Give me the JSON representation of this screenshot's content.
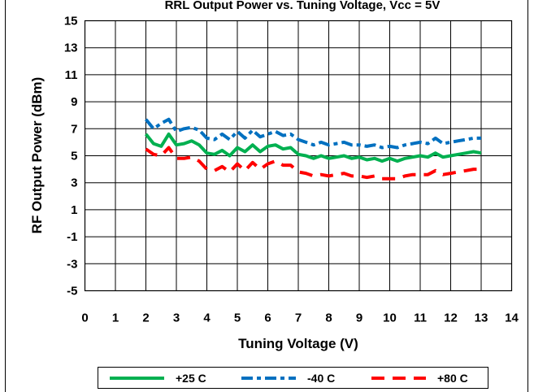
{
  "chart_data": {
    "type": "line",
    "title": "RRL Output Power vs. Tuning Voltage, Vcc = 5V",
    "xlabel": "Tuning Voltage (V)",
    "ylabel": "RF Output Power (dBm)",
    "xlim": [
      0,
      14
    ],
    "ylim": [
      -5,
      15
    ],
    "xticks": [
      "0",
      "1",
      "2",
      "3",
      "4",
      "5",
      "6",
      "7",
      "8",
      "9",
      "10",
      "11",
      "12",
      "13",
      "14"
    ],
    "yticks": [
      "-5",
      "-3",
      "-1",
      "1",
      "3",
      "5",
      "7",
      "9",
      "11",
      "13",
      "15"
    ],
    "grid": true,
    "legend_position": "bottom",
    "series": [
      {
        "name": "+25 C",
        "color": "#00b050",
        "dash": "solid",
        "x": [
          2.0,
          2.25,
          2.5,
          2.75,
          3.0,
          3.25,
          3.5,
          3.75,
          4.0,
          4.25,
          4.5,
          4.75,
          5.0,
          5.25,
          5.5,
          5.75,
          6.0,
          6.25,
          6.5,
          6.75,
          7.0,
          7.25,
          7.5,
          7.75,
          8.0,
          8.25,
          8.5,
          8.75,
          9.0,
          9.25,
          9.5,
          9.75,
          10.0,
          10.25,
          10.5,
          10.75,
          11.0,
          11.25,
          11.5,
          11.75,
          12.0,
          12.25,
          12.5,
          12.75,
          13.0
        ],
        "y": [
          6.6,
          5.9,
          5.7,
          6.6,
          5.8,
          5.9,
          6.1,
          5.8,
          5.2,
          5.1,
          5.4,
          5.0,
          5.6,
          5.3,
          5.8,
          5.3,
          5.7,
          5.8,
          5.5,
          5.6,
          5.1,
          5.0,
          4.8,
          5.0,
          4.8,
          4.9,
          5.0,
          4.8,
          4.9,
          4.7,
          4.8,
          4.6,
          4.8,
          4.6,
          4.8,
          4.9,
          5.0,
          4.9,
          5.2,
          4.9,
          5.0,
          5.1,
          5.2,
          5.3,
          5.2
        ]
      },
      {
        "name": "-40 C",
        "color": "#0070c0",
        "dash": "dash-dot",
        "x": [
          2.0,
          2.25,
          2.5,
          2.75,
          3.0,
          3.25,
          3.5,
          3.75,
          4.0,
          4.25,
          4.5,
          4.75,
          5.0,
          5.25,
          5.5,
          5.75,
          6.0,
          6.25,
          6.5,
          6.75,
          7.0,
          7.25,
          7.5,
          7.75,
          8.0,
          8.25,
          8.5,
          8.75,
          9.0,
          9.25,
          9.5,
          9.75,
          10.0,
          10.25,
          10.5,
          10.75,
          11.0,
          11.25,
          11.5,
          11.75,
          12.0,
          12.25,
          12.5,
          12.75,
          13.0
        ],
        "y": [
          7.7,
          7.0,
          7.4,
          7.7,
          6.8,
          7.0,
          7.1,
          6.9,
          6.3,
          6.2,
          6.6,
          6.2,
          6.8,
          6.3,
          6.9,
          6.4,
          6.6,
          6.8,
          6.5,
          6.6,
          6.2,
          6.0,
          5.8,
          6.0,
          5.8,
          5.9,
          6.0,
          5.8,
          5.8,
          5.7,
          5.8,
          5.6,
          5.7,
          5.6,
          5.8,
          5.9,
          6.0,
          5.9,
          6.3,
          5.9,
          6.0,
          6.1,
          6.2,
          6.3,
          6.3
        ]
      },
      {
        "name": "+80 C",
        "color": "#ff0000",
        "dash": "dash",
        "x": [
          2.0,
          2.25,
          2.5,
          2.75,
          3.0,
          3.25,
          3.5,
          3.75,
          4.0,
          4.25,
          4.5,
          4.75,
          5.0,
          5.25,
          5.5,
          5.75,
          6.0,
          6.25,
          6.5,
          6.75,
          7.0,
          7.25,
          7.5,
          7.75,
          8.0,
          8.25,
          8.5,
          8.75,
          9.0,
          9.25,
          9.5,
          9.75,
          10.0,
          10.25,
          10.5,
          10.75,
          11.0,
          11.25,
          11.5,
          11.75,
          12.0,
          12.25,
          12.5,
          12.75,
          13.0
        ],
        "y": [
          5.5,
          5.1,
          5.0,
          5.6,
          4.8,
          4.8,
          4.9,
          4.6,
          4.0,
          3.9,
          4.2,
          3.8,
          4.4,
          3.9,
          4.5,
          4.0,
          4.4,
          4.6,
          4.3,
          4.3,
          3.8,
          3.7,
          3.5,
          3.6,
          3.5,
          3.6,
          3.7,
          3.5,
          3.5,
          3.4,
          3.5,
          3.3,
          3.3,
          3.3,
          3.5,
          3.6,
          3.6,
          3.6,
          3.9,
          3.6,
          3.7,
          3.8,
          3.9,
          4.0,
          4.0
        ]
      }
    ]
  }
}
